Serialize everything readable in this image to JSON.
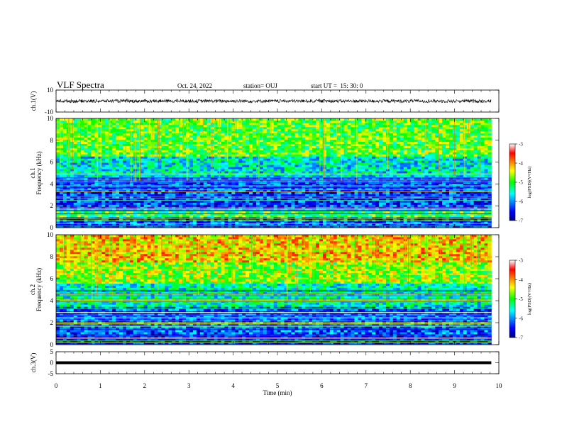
{
  "header": {
    "title": "VLF Spectra",
    "date": "Oct. 24, 2022",
    "station": "station= OUJ",
    "start": "start UT =  15: 30: 0"
  },
  "colorbar": {
    "ticks": [
      "-3",
      "-4",
      "-5",
      "-6",
      "-7"
    ],
    "label": "log(PSD)(V²/Hz)"
  },
  "chart_data": [
    {
      "type": "line",
      "panel": "waveform",
      "ylabel": "ch.1(V)",
      "ylim": [
        -10,
        10
      ],
      "yticks": [
        "10",
        "-10"
      ],
      "xlim": [
        0,
        10
      ],
      "series": [
        {
          "values_desc": "",
          "mean": 0,
          "amplitude": 1.5
        }
      ]
    },
    {
      "type": "heatmap",
      "panel": "spectrogram",
      "ylabel": "ch.1",
      "ylabel2": "Frequency (kHz)",
      "ylim": [
        0,
        10
      ],
      "yticks": [
        "0",
        "2",
        "4",
        "6",
        "8",
        "10"
      ],
      "xlim": [
        0,
        9.83
      ],
      "zlim": [
        -7,
        -3
      ],
      "bands": [
        {
          "f": [
            0.0,
            1.0
          ],
          "level": -6.2
        },
        {
          "f": [
            1.0,
            1.6
          ],
          "level": -5.0
        },
        {
          "f": [
            1.6,
            4.7
          ],
          "level": -6.3
        },
        {
          "f": [
            4.7,
            6.5
          ],
          "level": -5.6
        },
        {
          "f": [
            6.5,
            10.0
          ],
          "level": -4.9
        }
      ]
    },
    {
      "type": "heatmap",
      "panel": "spectrogram",
      "ylabel": "ch.2",
      "ylabel2": "Frequency (kHz)",
      "ylim": [
        0,
        10
      ],
      "yticks": [
        "0",
        "2",
        "4",
        "6",
        "8",
        "10"
      ],
      "xlim": [
        0,
        9.83
      ],
      "zlim": [
        -7,
        -3
      ],
      "bands": [
        {
          "f": [
            0.0,
            1.0
          ],
          "level": -6.5
        },
        {
          "f": [
            1.0,
            3.5
          ],
          "level": -6.2
        },
        {
          "f": [
            3.5,
            5.5
          ],
          "level": -5.5
        },
        {
          "f": [
            5.5,
            7.5
          ],
          "level": -4.7
        },
        {
          "f": [
            7.5,
            10.0
          ],
          "level": -4.2
        }
      ]
    },
    {
      "type": "line",
      "panel": "ch3",
      "ylabel": "ch.3(V)",
      "ylim": [
        -5,
        5
      ],
      "yticks": [
        "5",
        "0",
        "-5"
      ],
      "xlim": [
        0,
        10
      ],
      "series": [
        {
          "x": [
            0,
            5.05,
            5.1,
            9.83
          ],
          "y": [
            0,
            0,
            0,
            0
          ]
        }
      ]
    }
  ],
  "xaxis": {
    "label": "Time (min)",
    "ticks": [
      "0",
      "1",
      "2",
      "3",
      "4",
      "5",
      "6",
      "7",
      "8",
      "9",
      "10"
    ],
    "range": [
      0,
      10
    ]
  }
}
